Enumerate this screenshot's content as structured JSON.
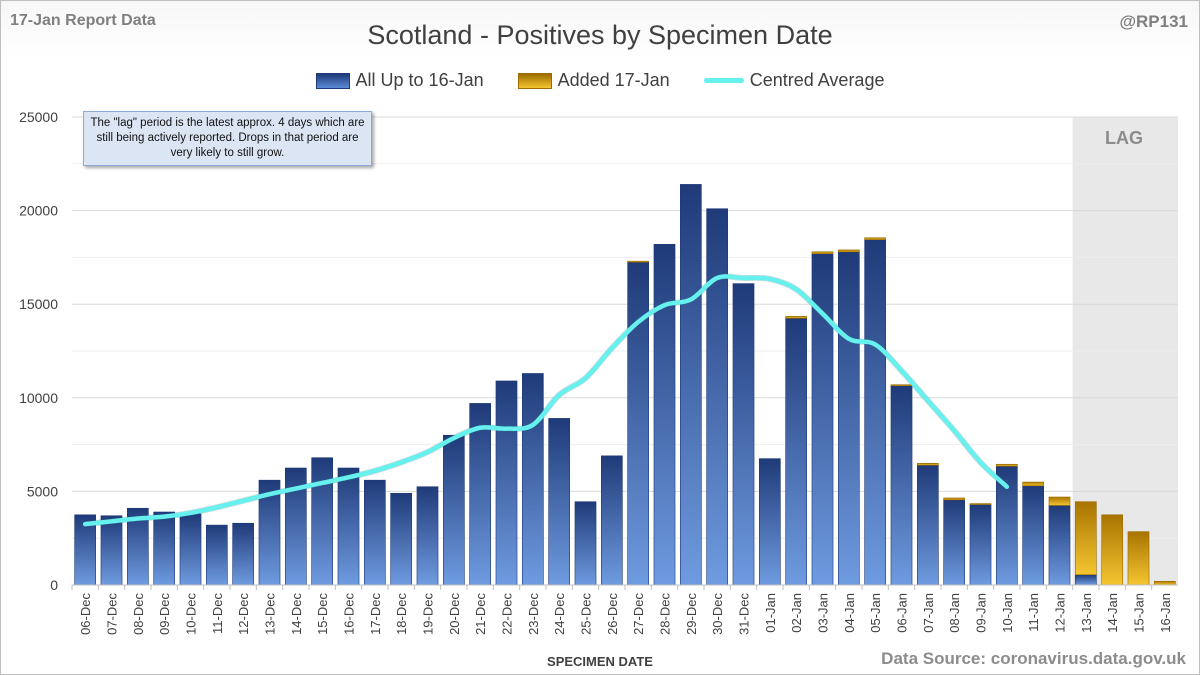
{
  "header": {
    "report_label": "17-Jan Report Data",
    "handle": "@RP131"
  },
  "footer": {
    "source": "Data Source: coronavirus.data.gov.uk"
  },
  "note": "The \"lag\" period is the latest approx. 4 days which are still being actively reported. Drops in that period are very likely to still grow.",
  "lag_label": "LAG",
  "colors": {
    "blue_dark": "#1f3a78",
    "blue_light": "#6f9be0",
    "gold_dark": "#9c6c00",
    "gold_light": "#f5c531",
    "average_line": "#66f0ee",
    "lag_shade": "#e8e8e8"
  },
  "chart_data": {
    "type": "bar",
    "title": "Scotland - Positives by Specimen Date",
    "xlabel": "SPECIMEN DATE",
    "ylabel": "",
    "ylim": [
      0,
      25000
    ],
    "yticks": [
      0,
      5000,
      10000,
      15000,
      20000,
      25000
    ],
    "grid": true,
    "legend_position": "top",
    "stacked": true,
    "categories": [
      "06-Dec",
      "07-Dec",
      "08-Dec",
      "09-Dec",
      "10-Dec",
      "11-Dec",
      "12-Dec",
      "13-Dec",
      "14-Dec",
      "15-Dec",
      "16-Dec",
      "17-Dec",
      "18-Dec",
      "19-Dec",
      "20-Dec",
      "21-Dec",
      "22-Dec",
      "23-Dec",
      "24-Dec",
      "25-Dec",
      "26-Dec",
      "27-Dec",
      "28-Dec",
      "29-Dec",
      "30-Dec",
      "31-Dec",
      "01-Jan",
      "02-Jan",
      "03-Jan",
      "04-Jan",
      "05-Jan",
      "06-Jan",
      "07-Jan",
      "08-Jan",
      "09-Jan",
      "10-Jan",
      "11-Jan",
      "12-Jan",
      "13-Jan",
      "14-Jan",
      "15-Jan",
      "16-Jan"
    ],
    "series": [
      {
        "name": "All Up to 16-Jan",
        "kind": "bar",
        "values": [
          3750,
          3700,
          4100,
          3900,
          3800,
          3200,
          3300,
          5600,
          6250,
          6800,
          6250,
          5600,
          4900,
          5250,
          8000,
          9700,
          10900,
          11300,
          8900,
          4450,
          6900,
          17250,
          18200,
          21400,
          20100,
          16100,
          6750,
          14250,
          17700,
          17800,
          18450,
          10650,
          6400,
          4550,
          4300,
          6350,
          5300,
          4250,
          550,
          0,
          0,
          0
        ]
      },
      {
        "name": "Added 17-Jan",
        "kind": "bar",
        "values": [
          0,
          0,
          0,
          0,
          0,
          0,
          0,
          0,
          0,
          0,
          0,
          0,
          0,
          0,
          0,
          0,
          0,
          0,
          0,
          0,
          0,
          50,
          0,
          0,
          0,
          0,
          0,
          100,
          100,
          100,
          100,
          50,
          100,
          100,
          50,
          100,
          200,
          450,
          3900,
          3750,
          2850,
          200
        ]
      },
      {
        "name": "Centred Average",
        "kind": "line",
        "values": [
          3250,
          3400,
          3550,
          3650,
          3850,
          4150,
          4500,
          4850,
          5150,
          5450,
          5750,
          6100,
          6550,
          7100,
          7850,
          8400,
          8350,
          8550,
          10150,
          11050,
          12650,
          14050,
          14950,
          15250,
          16400,
          16400,
          16350,
          15800,
          14500,
          13150,
          12850,
          11450,
          9850,
          8250,
          6550,
          5250,
          null,
          null,
          null,
          null,
          null,
          null
        ]
      }
    ],
    "lag_categories": [
      "13-Jan",
      "14-Jan",
      "15-Jan",
      "16-Jan"
    ],
    "annotation": "LAG"
  }
}
